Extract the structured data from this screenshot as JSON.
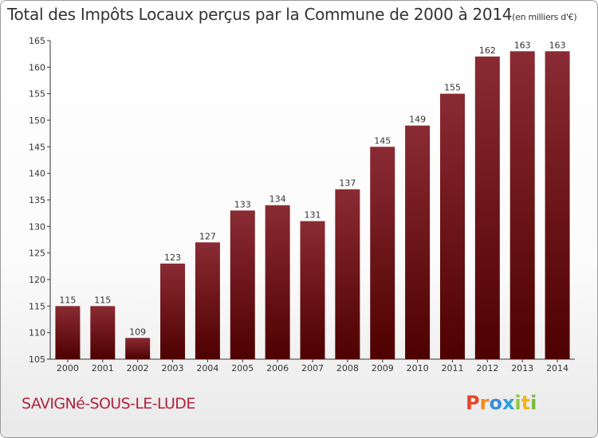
{
  "title": "Total des Impôts Locaux perçus par la Commune de 2000 à 2014",
  "unit_note": "(en milliers d'€)",
  "commune": "SAVIGNé-SOUS-LE-LUDE",
  "logo": {
    "letters": [
      "P",
      "r",
      "o",
      "x",
      "i",
      "t",
      "i"
    ],
    "colors": [
      "#e8462a",
      "#f08a1c",
      "#3d8ed8",
      "#2aa0d8",
      "#8cc63e",
      "#f2b61b",
      "#7ab93d"
    ]
  },
  "colors": {
    "bar_top": "#8a2b33",
    "bar_bottom": "#4e0000",
    "axis": "#333333"
  },
  "chart_data": {
    "type": "bar",
    "title": "Total des Impôts Locaux perçus par la Commune de 2000 à 2014",
    "xlabel": "",
    "ylabel": "",
    "categories": [
      "2000",
      "2001",
      "2002",
      "2003",
      "2004",
      "2005",
      "2006",
      "2007",
      "2008",
      "2009",
      "2010",
      "2011",
      "2012",
      "2013",
      "2014"
    ],
    "values": [
      115,
      115,
      109,
      123,
      127,
      133,
      134,
      131,
      137,
      145,
      149,
      155,
      162,
      163,
      163
    ],
    "ylim": [
      105,
      165
    ],
    "yticks": [
      105,
      110,
      115,
      120,
      125,
      130,
      135,
      140,
      145,
      150,
      155,
      160,
      165
    ],
    "grid": false,
    "legend": "none"
  }
}
